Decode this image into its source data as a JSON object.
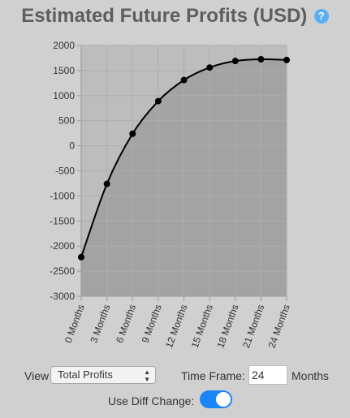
{
  "header": {
    "title": "Estimated Future Profits (USD)",
    "help_icon": "?"
  },
  "controls": {
    "view_label": "View",
    "view_selected": "Total Profits",
    "timeframe_label": "Time Frame:",
    "timeframe_value": "24",
    "months_label": "Months",
    "diff_label": "Use Diff Change:",
    "diff_enabled": true
  },
  "colors": {
    "background": "#d0d0d0",
    "plot_background": "#bdbdbd",
    "area_fill": "#a3a3a3",
    "line": "#000000",
    "toggle": "#1a86f5"
  },
  "chart_data": {
    "type": "area",
    "categories": [
      "0 Months",
      "3 Months",
      "6 Months",
      "9 Months",
      "12 Months",
      "15 Months",
      "18 Months",
      "21 Months",
      "24 Months"
    ],
    "values": [
      -2220,
      -760,
      240,
      890,
      1310,
      1560,
      1690,
      1725,
      1710
    ],
    "ylim": [
      -3000,
      2000
    ],
    "yticks": [
      2000,
      1500,
      1000,
      500,
      0,
      -500,
      -1000,
      -1500,
      -2000,
      -2500,
      -3000
    ],
    "grid": true
  }
}
